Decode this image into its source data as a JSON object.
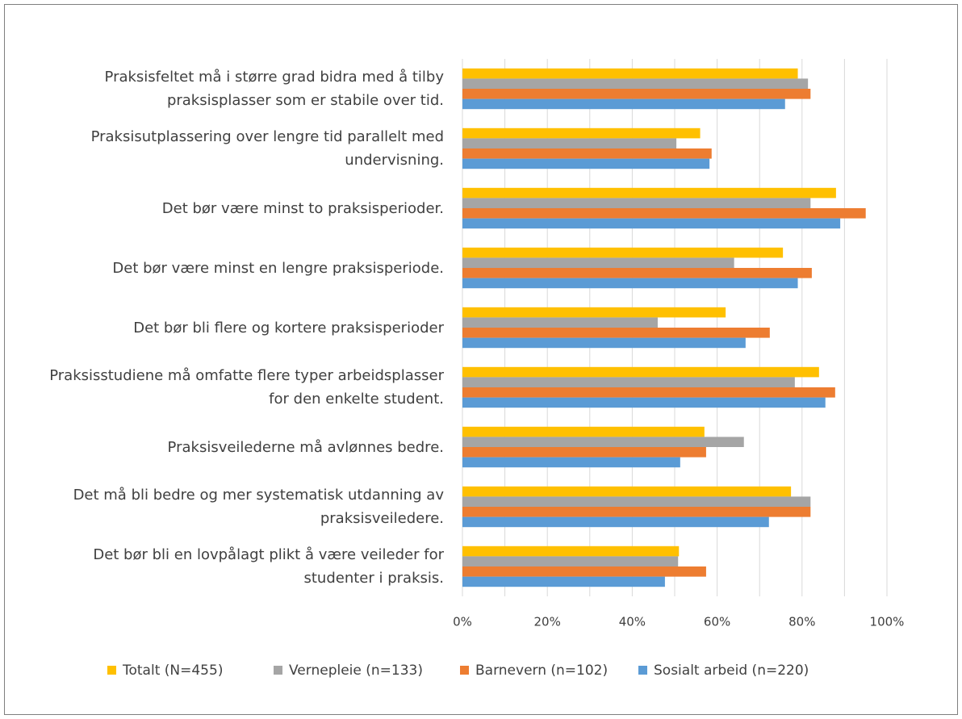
{
  "chart_data": {
    "type": "barh",
    "categories": [
      "Praksisfeltet må i større grad bidra med å tilby praksisplasser som er stabile over tid.",
      "Praksisutplassering over lengre tid parallelt med undervisning.",
      "Det bør være minst to praksisperioder.",
      "Det bør være minst en lengre praksisperiode.",
      "Det bør bli flere og kortere praksisperioder",
      "Praksisstudiene må omfatte flere typer arbeidsplasser for den enkelte student.",
      "Praksisveilederne må avlønnes bedre.",
      "Det må bli bedre og mer systematisk utdanning av praksisveiledere.",
      "Det bør bli en lovpålagt plikt å være veileder for studenter i praksis."
    ],
    "series": [
      {
        "name": "Totalt (N=455)",
        "color": "#ffc000",
        "values": [
          79,
          56,
          88,
          75.5,
          62,
          84,
          57,
          77.4,
          51
        ]
      },
      {
        "name": "Vernepleie (n=133)",
        "color": "#a5a5a5",
        "values": [
          81.4,
          50.4,
          82,
          64,
          46,
          78.3,
          66.3,
          82,
          50.8
        ]
      },
      {
        "name": "Barnevern (n=102)",
        "color": "#ed7d31",
        "values": [
          82,
          58.7,
          95,
          82.3,
          72.4,
          87.8,
          57.4,
          82,
          57.4
        ]
      },
      {
        "name": "Sosialt arbeid (n=220)",
        "color": "#5b9bd5",
        "values": [
          76,
          58.2,
          89,
          79,
          66.7,
          85.5,
          51.3,
          72.2,
          47.7
        ]
      }
    ],
    "xlim": [
      0,
      100
    ],
    "xticks": [
      {
        "value": 0,
        "label": "0%"
      },
      {
        "value": 20,
        "label": "20%"
      },
      {
        "value": 40,
        "label": "40%"
      },
      {
        "value": 60,
        "label": "60%"
      },
      {
        "value": 80,
        "label": "80%"
      },
      {
        "value": 100,
        "label": "100%"
      }
    ],
    "minor_xticks": [
      10,
      30,
      50,
      70,
      90
    ],
    "grid": true,
    "legend": "bottom"
  }
}
